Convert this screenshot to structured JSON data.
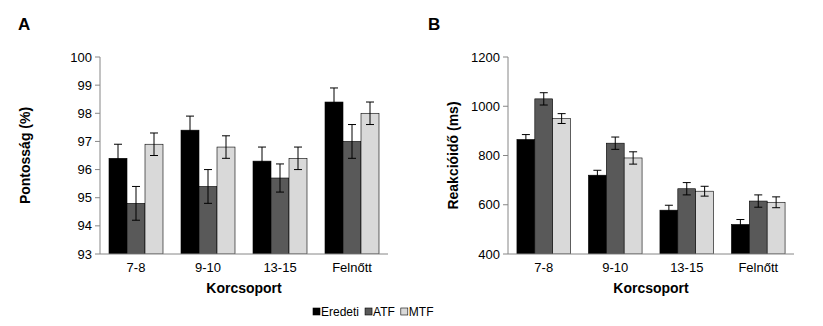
{
  "chart_data": [
    {
      "type": "bar",
      "title": "A",
      "x_label": "Korcsoport",
      "y_label": "Pontosság (%)",
      "categories": [
        "7-8",
        "9-10",
        "13-15",
        "Felnőtt"
      ],
      "ylim": [
        93,
        100
      ],
      "yticks": [
        93,
        94,
        95,
        96,
        97,
        98,
        99,
        100
      ],
      "legend": "bottom",
      "series": [
        {
          "name": "Eredeti",
          "color": "#000000",
          "values": [
            96.4,
            97.4,
            96.3,
            98.4
          ],
          "errors": [
            0.5,
            0.5,
            0.5,
            0.5
          ]
        },
        {
          "name": "ATF",
          "color": "#595959",
          "values": [
            94.8,
            95.4,
            95.7,
            97.0
          ],
          "errors": [
            0.6,
            0.6,
            0.5,
            0.6
          ]
        },
        {
          "name": "MTF",
          "color": "#d9d9d9",
          "values": [
            96.9,
            96.8,
            96.4,
            98.0
          ],
          "errors": [
            0.4,
            0.4,
            0.4,
            0.4
          ]
        }
      ]
    },
    {
      "type": "bar",
      "title": "B",
      "x_label": "Korcsoport",
      "y_label": "Reakcióidő (ms)",
      "categories": [
        "7-8",
        "9-10",
        "13-15",
        "Felnőtt"
      ],
      "ylim": [
        400,
        1200
      ],
      "yticks": [
        400,
        600,
        800,
        1000,
        1200
      ],
      "series": [
        {
          "color": "#000000",
          "values": [
            865,
            720,
            578,
            520
          ],
          "errors": [
            20,
            20,
            20,
            20
          ]
        },
        {
          "color": "#595959",
          "values": [
            1030,
            850,
            665,
            615
          ],
          "errors": [
            25,
            25,
            25,
            25
          ]
        },
        {
          "color": "#d9d9d9",
          "values": [
            950,
            790,
            655,
            610
          ],
          "errors": [
            20,
            25,
            20,
            22
          ]
        }
      ]
    }
  ]
}
